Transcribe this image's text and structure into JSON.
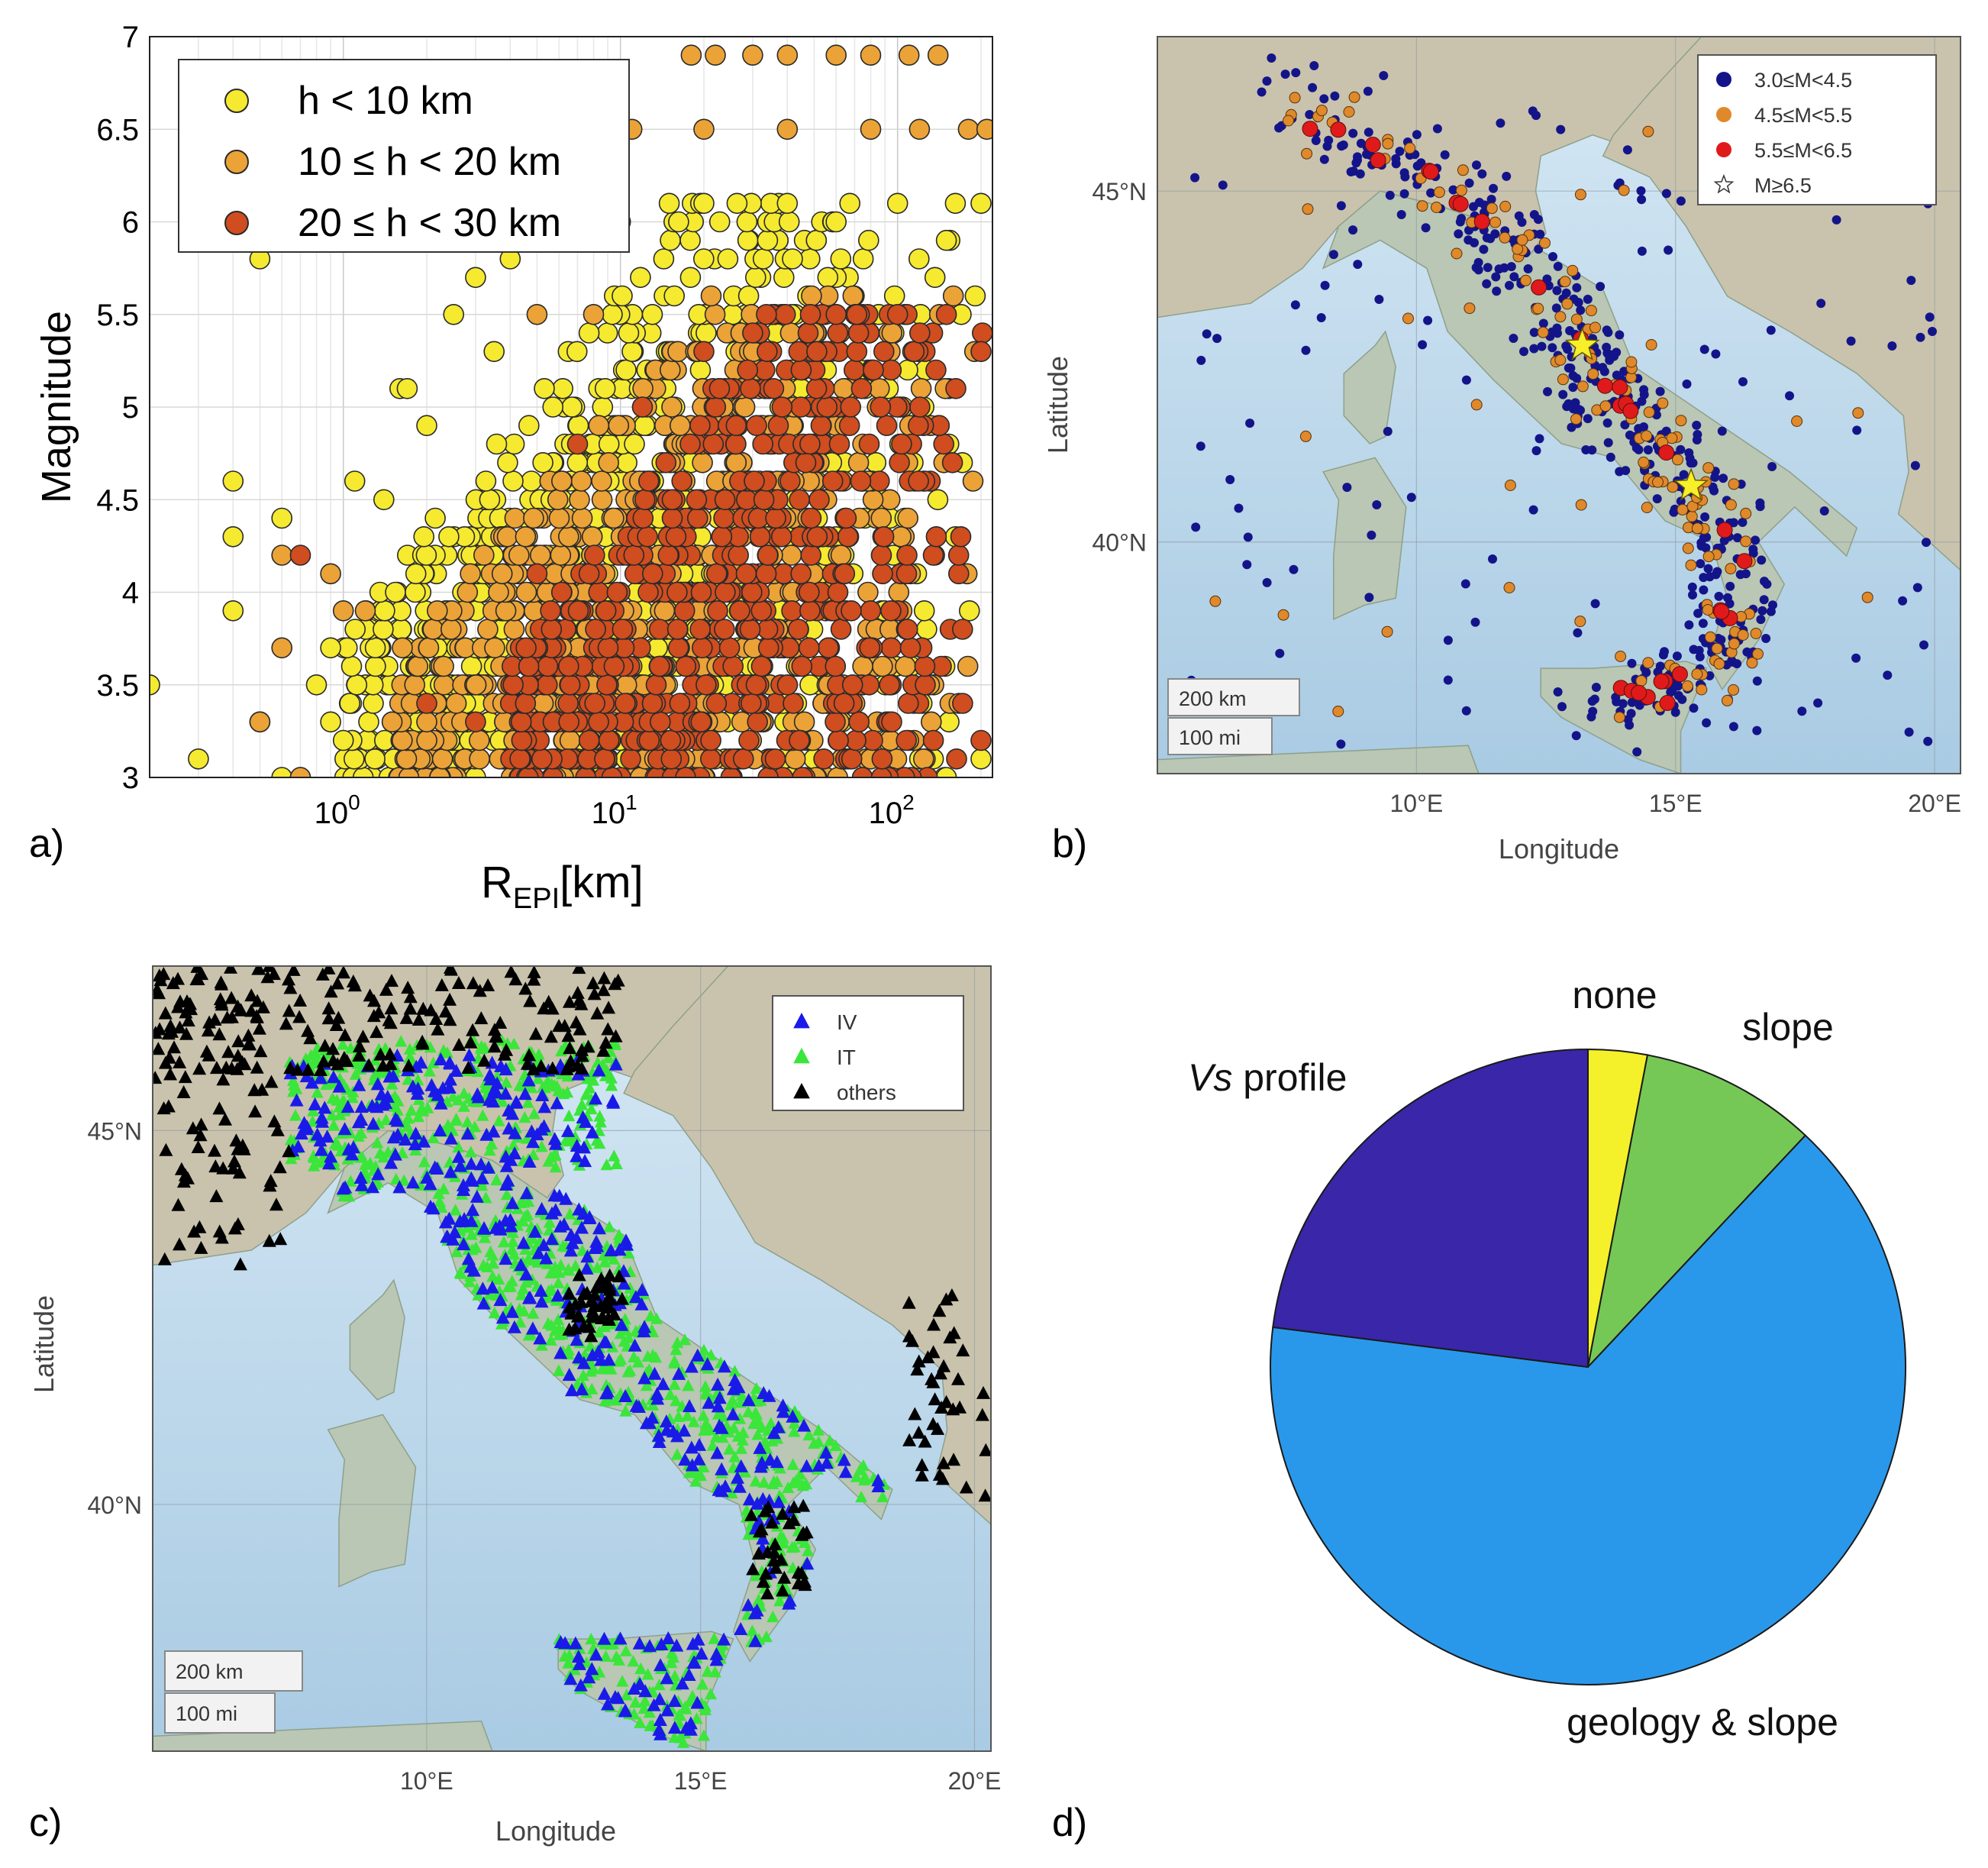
{
  "panel_labels": [
    "a)",
    "b)",
    "c)",
    "d)"
  ],
  "chart_data": [
    {
      "panel": "a)",
      "type": "scatter",
      "xlabel_main": "R",
      "xlabel_sub": "EPI",
      "xlabel_unit": "[km]",
      "ylabel": "Magnitude",
      "xscale": "log",
      "xlim": [
        0.2,
        220
      ],
      "ylim": [
        3,
        7
      ],
      "grid": true,
      "legend_position": "top-left",
      "xticks": [
        {
          "base": "10",
          "exp": "0",
          "value": 1
        },
        {
          "base": "10",
          "exp": "1",
          "value": 10
        },
        {
          "base": "10",
          "exp": "2",
          "value": 100
        }
      ],
      "yticks": [
        "3",
        "3.5",
        "4",
        "4.5",
        "5",
        "5.5",
        "6",
        "6.5",
        "7"
      ],
      "series": [
        {
          "name": "h < 10 km",
          "color": "#f5ea2f",
          "points": [
            [
              0.2,
              3.5
            ],
            [
              0.3,
              3.1
            ],
            [
              0.4,
              4.6
            ],
            [
              0.4,
              4.3
            ],
            [
              0.4,
              3.9
            ],
            [
              0.5,
              3.3
            ],
            [
              0.5,
              5.8
            ],
            [
              0.6,
              4.4
            ],
            [
              0.6,
              3.0
            ],
            [
              0.7,
              3.0
            ],
            [
              0.8,
              3.5
            ],
            [
              0.9,
              3.7
            ],
            [
              1.0,
              3.2
            ],
            [
              1.1,
              4.6
            ],
            [
              1.4,
              4.5
            ],
            [
              1.6,
              5.1
            ],
            [
              1.7,
              5.1
            ],
            [
              2.0,
              4.9
            ],
            [
              2.5,
              5.5
            ],
            [
              3.0,
              5.7
            ],
            [
              3.5,
              5.3
            ],
            [
              4.0,
              5.8
            ],
            [
              5.0,
              6.0
            ],
            [
              7.0,
              6.1
            ],
            [
              10,
              6.0
            ],
            [
              15,
              6.1
            ],
            [
              20,
              6.1
            ],
            [
              40,
              6.1
            ],
            [
              60,
              6.0
            ],
            [
              100,
              6.1
            ],
            [
              150,
              5.9
            ],
            [
              200,
              6.1
            ],
            [
              0.9,
              3.3
            ],
            [
              1.3,
              3.1
            ],
            [
              2.2,
              3.0
            ],
            [
              3.0,
              3.0
            ],
            [
              150,
              3.0
            ],
            [
              200,
              3.1
            ]
          ],
          "fill": {
            "rMin": 1.0,
            "rMax": 200,
            "mLow": 3.0,
            "mHigh": 6.1
          }
        },
        {
          "name": "10 ≤ h < 20 km",
          "color": "#eba337",
          "points": [
            [
              0.5,
              3.3
            ],
            [
              0.6,
              4.2
            ],
            [
              0.6,
              3.7
            ],
            [
              0.7,
              3.0
            ],
            [
              0.9,
              4.1
            ],
            [
              1.0,
              3.9
            ],
            [
              1.2,
              3.9
            ],
            [
              1.5,
              3.3
            ],
            [
              2.0,
              3.3
            ],
            [
              18,
              6.9
            ],
            [
              22,
              6.9
            ],
            [
              30,
              6.9
            ],
            [
              40,
              6.9
            ],
            [
              60,
              6.9
            ],
            [
              80,
              6.9
            ],
            [
              110,
              6.9
            ],
            [
              140,
              6.9
            ],
            [
              11,
              6.5
            ],
            [
              20,
              6.5
            ],
            [
              40,
              6.5
            ],
            [
              80,
              6.5
            ],
            [
              120,
              6.5
            ],
            [
              180,
              6.5
            ],
            [
              210,
              6.5
            ],
            [
              5,
              5.5
            ],
            [
              8,
              5.5
            ]
          ],
          "fill": {
            "rMin": 1.5,
            "rMax": 210,
            "mLow": 3.0,
            "mHigh": 5.6
          }
        },
        {
          "name": "20 ≤ h < 30 km",
          "color": "#cf4d1f",
          "points": [
            [
              0.7,
              4.2
            ],
            [
              2.0,
              3.4
            ],
            [
              3.0,
              3.3
            ],
            [
              5.0,
              4.1
            ],
            [
              7.0,
              4.8
            ],
            [
              12,
              5.0
            ],
            [
              20,
              5.3
            ],
            [
              30,
              5.4
            ],
            [
              60,
              5.5
            ],
            [
              100,
              5.5
            ],
            [
              150,
              5.5
            ],
            [
              200,
              5.3
            ],
            [
              200,
              3.2
            ]
          ],
          "fill": {
            "rMin": 4.0,
            "rMax": 210,
            "mLow": 3.0,
            "mHigh": 5.5
          }
        }
      ]
    },
    {
      "panel": "b)",
      "type": "scatter",
      "xlabel": "Longitude",
      "ylabel": "Latitude",
      "xlim": [
        5.0,
        20.5
      ],
      "ylim": [
        36.7,
        47.2
      ],
      "grid": true,
      "legend_position": "top-right",
      "xticks": [
        "10°E",
        "15°E",
        "20°E"
      ],
      "yticks": [
        "40°N",
        "45°N"
      ],
      "scale_bar": [
        "200 km",
        "100 mi"
      ],
      "series": [
        {
          "name": "3.0≤M<4.5",
          "color": "#14148a",
          "marker": "circle"
        },
        {
          "name": "4.5≤M<5.5",
          "color": "#e0892a",
          "marker": "circle"
        },
        {
          "name": "5.5≤M<6.5",
          "color": "#e01a1a",
          "marker": "circle"
        },
        {
          "name": "M≥6.5",
          "color": "#f6ef2a",
          "marker": "star",
          "points": [
            [
              13.2,
              42.8
            ],
            [
              15.3,
              40.8
            ]
          ]
        }
      ]
    },
    {
      "panel": "c)",
      "type": "scatter",
      "xlabel": "Longitude",
      "ylabel": "Latitude",
      "xlim": [
        5.0,
        20.3
      ],
      "ylim": [
        36.7,
        47.2
      ],
      "grid": true,
      "legend_position": "top-right",
      "xticks": [
        "10°E",
        "15°E",
        "20°E"
      ],
      "yticks": [
        "40°N",
        "45°N"
      ],
      "scale_bar": [
        "200 km",
        "100 mi"
      ],
      "series": [
        {
          "name": "IV",
          "color": "#1a1ae8",
          "marker": "triangle"
        },
        {
          "name": "IT",
          "color": "#3ae63a",
          "marker": "triangle"
        },
        {
          "name": "others",
          "color": "#000000",
          "marker": "triangle"
        }
      ]
    },
    {
      "panel": "d)",
      "type": "pie",
      "slices": [
        {
          "label": "none",
          "value": 3,
          "color": "#f4f02a"
        },
        {
          "label": "slope",
          "value": 9,
          "color": "#76c856"
        },
        {
          "label": "geology & slope",
          "value": 65,
          "color": "#2a98ea"
        },
        {
          "label_italic": "Vs",
          "label": " profile",
          "value": 23,
          "color": "#3a26a8"
        }
      ]
    }
  ]
}
